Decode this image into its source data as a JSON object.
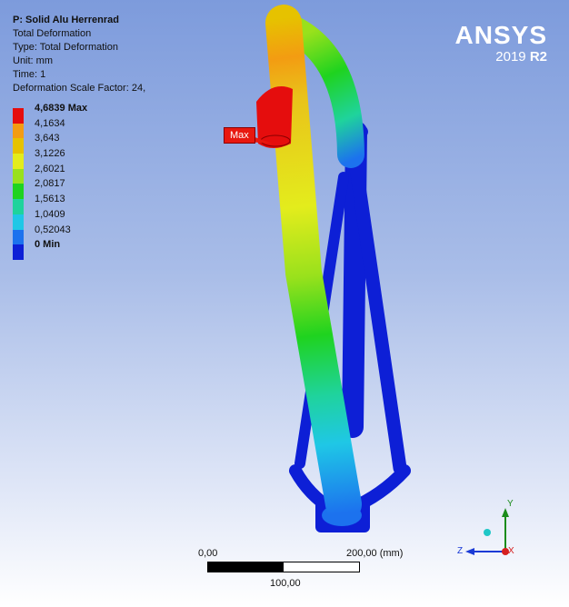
{
  "result": {
    "title": "P: Solid Alu Herrenrad",
    "lines": [
      "Total Deformation",
      "Type: Total Deformation",
      "Unit: mm",
      "Time: 1",
      "Deformation Scale Factor: 24,"
    ]
  },
  "legend": [
    {
      "label": "4,6839 Max",
      "color": "#e50d0d",
      "bold": true
    },
    {
      "label": "4,1634",
      "color": "#f39c12",
      "bold": false
    },
    {
      "label": "3,643",
      "color": "#e6c200",
      "bold": false
    },
    {
      "label": "3,1226",
      "color": "#e3ec1c",
      "bold": false
    },
    {
      "label": "2,6021",
      "color": "#99e11c",
      "bold": false
    },
    {
      "label": "2,0817",
      "color": "#1fd31f",
      "bold": false
    },
    {
      "label": "1,5613",
      "color": "#1fd39c",
      "bold": false
    },
    {
      "label": "1,0409",
      "color": "#1fc7e6",
      "bold": false
    },
    {
      "label": "0,52043",
      "color": "#1c72ee",
      "bold": false
    },
    {
      "label": "0 Min",
      "color": "#0d1fd6",
      "bold": true
    }
  ],
  "brand": {
    "name": "ANSYS",
    "version": "2019",
    "release": "R2"
  },
  "probe": {
    "label": "Max"
  },
  "scale": {
    "left": "0,00",
    "right": "200,00 (mm)",
    "middle": "100,00"
  },
  "triad": {
    "y": "Y",
    "z": "Z",
    "x": "X"
  }
}
